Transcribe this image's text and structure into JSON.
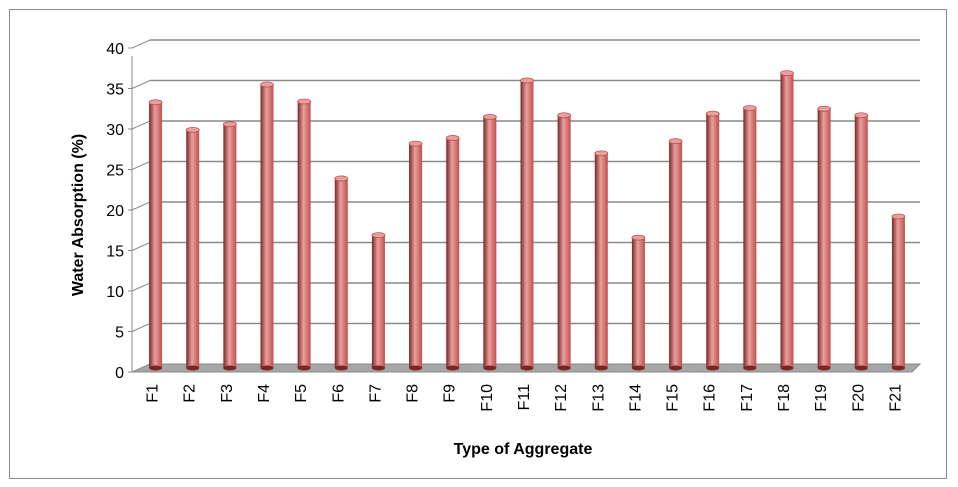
{
  "chart_data": {
    "type": "bar",
    "title": "",
    "xlabel": "Type of Aggregate",
    "ylabel": "Water Absorption (%)",
    "categories": [
      "F1",
      "F2",
      "F3",
      "F4",
      "F5",
      "F6",
      "F7",
      "F8",
      "F9",
      "F10",
      "F11",
      "F12",
      "F13",
      "F14",
      "F15",
      "F16",
      "F17",
      "F18",
      "F19",
      "F20",
      "F21"
    ],
    "values": [
      32.8,
      29.4,
      30.1,
      35.0,
      32.9,
      23.4,
      16.4,
      27.7,
      28.4,
      31.0,
      35.5,
      31.2,
      26.5,
      16.1,
      28.0,
      31.4,
      32.1,
      36.4,
      32.0,
      31.2,
      18.7
    ],
    "ylim": [
      0,
      40
    ],
    "yticks": [
      0,
      5,
      10,
      15,
      20,
      25,
      30,
      35,
      40
    ],
    "grid": true,
    "legend": "none",
    "colors": {
      "bar": "#c0504d",
      "bar_dark": "#7a2624",
      "bar_light": "#e8a09e",
      "grid": "#8a8a8a",
      "floor": "#a6a6a6"
    }
  }
}
